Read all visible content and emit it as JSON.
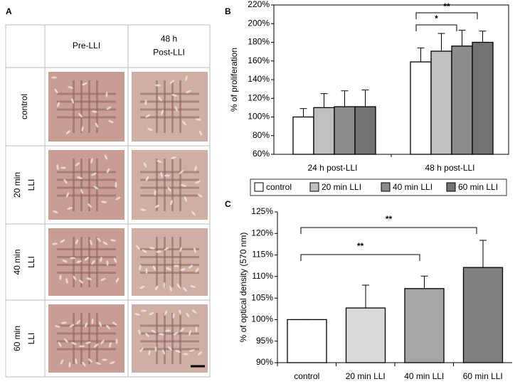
{
  "panel_a": {
    "panel": "A",
    "columns": [
      [
        "Pre-LLI"
      ],
      [
        "48 h",
        "Post-LLI"
      ]
    ],
    "rows": [
      [
        "control"
      ],
      [
        "20 min",
        "LLI"
      ],
      [
        "40 min",
        "LLI"
      ],
      [
        "60 min",
        "LLI"
      ]
    ]
  },
  "chart_data": [
    {
      "type": "bar",
      "panel": "B",
      "y_label": "% of proliferation",
      "categories": [
        "24 h post-LLI",
        "48 h post-LLI"
      ],
      "series": [
        {
          "name": "control",
          "color": "#ffffff",
          "values": [
            100,
            159
          ],
          "errors": [
            9,
            15
          ]
        },
        {
          "name": "20 min LLI",
          "color": "#bfbfbf",
          "values": [
            110,
            170.5
          ],
          "errors": [
            15,
            19
          ]
        },
        {
          "name": "40 min LLI",
          "color": "#8c8c8c",
          "values": [
            111,
            176
          ],
          "errors": [
            17,
            17
          ]
        },
        {
          "name": "60 min LLI",
          "color": "#737373",
          "values": [
            111,
            180
          ],
          "errors": [
            18,
            12
          ]
        }
      ],
      "ylim": [
        60,
        220
      ],
      "yticks": [
        {
          "value": 60,
          "label": "60%"
        },
        {
          "value": 80,
          "label": "80%"
        },
        {
          "value": 100,
          "label": "100%"
        },
        {
          "value": 120,
          "label": "120%"
        },
        {
          "value": 140,
          "label": "140%"
        },
        {
          "value": 160,
          "label": "160%"
        },
        {
          "value": 180,
          "label": "180%"
        },
        {
          "value": 200,
          "label": "200%"
        },
        {
          "value": 220,
          "label": "220%"
        }
      ],
      "annotations": [
        "**",
        "*"
      ],
      "legend": "bottom",
      "grid": false
    },
    {
      "type": "bar",
      "panel": "C",
      "y_label": "% of optical density (570 nm)",
      "categories": [
        "control",
        "20 min LLI",
        "40 min LLI",
        "60 min LLI"
      ],
      "values": [
        100,
        102.7,
        107.2,
        112.1
      ],
      "errors": [
        0,
        5.3,
        2.9,
        6.3
      ],
      "colors": [
        "#ffffff",
        "#d9d9d9",
        "#a6a6a6",
        "#808080"
      ],
      "ylim": [
        90,
        125
      ],
      "yticks": [
        {
          "value": 90,
          "label": "90%"
        },
        {
          "value": 95,
          "label": "95%"
        },
        {
          "value": 100,
          "label": "100%"
        },
        {
          "value": 105,
          "label": "105%"
        },
        {
          "value": 110,
          "label": "110%"
        },
        {
          "value": 115,
          "label": "115%"
        },
        {
          "value": 120,
          "label": "120%"
        },
        {
          "value": 125,
          "label": "125%"
        }
      ],
      "annotations": [
        "**",
        "**"
      ],
      "grid": false
    }
  ]
}
